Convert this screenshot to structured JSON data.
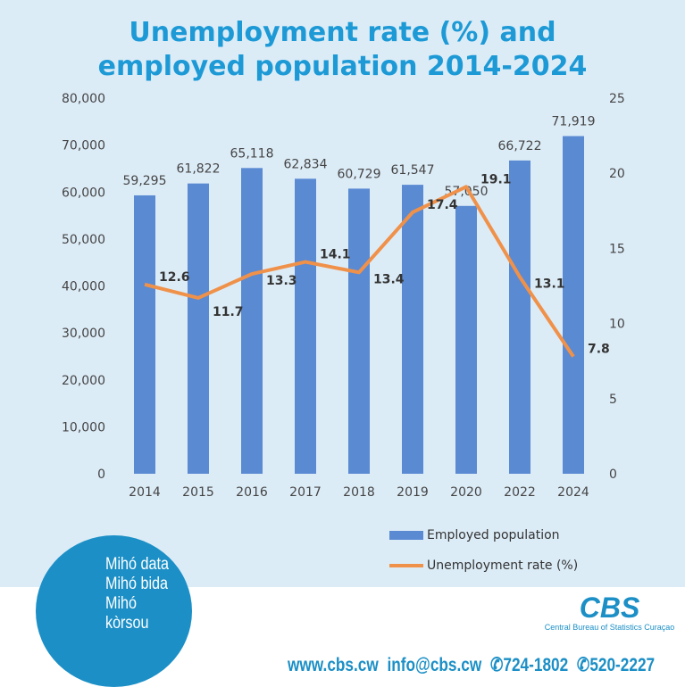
{
  "title_line1": "Unemployment rate (%) and",
  "title_line2": "employed population 2014-2024",
  "chart_data": {
    "type": "bar+line",
    "categories": [
      "2014",
      "2015",
      "2016",
      "2017",
      "2018",
      "2019",
      "2020",
      "2022",
      "2024"
    ],
    "series": [
      {
        "name": "Employed population",
        "type": "bar",
        "axis": "left",
        "values": [
          59295,
          61822,
          65118,
          62834,
          60729,
          61547,
          57050,
          66722,
          71919
        ],
        "labels": [
          "59,295",
          "61,822",
          "65,118",
          "62,834",
          "60,729",
          "61,547",
          "57,050",
          "66,722",
          "71,919"
        ]
      },
      {
        "name": "Unemployment rate (%)",
        "type": "line",
        "axis": "right",
        "values": [
          12.6,
          11.7,
          13.3,
          14.1,
          13.4,
          17.4,
          19.1,
          13.1,
          7.8
        ],
        "labels": [
          "12.6",
          "11.7",
          "13.3",
          "14.1",
          "13.4",
          "17.4",
          "19.1",
          "13.1",
          "7.8"
        ]
      }
    ],
    "left_axis": {
      "ylim": [
        0,
        80000
      ],
      "ticks": [
        "0",
        "10,000",
        "20,000",
        "30,000",
        "40,000",
        "50,000",
        "60,000",
        "70,000",
        "80,000"
      ]
    },
    "right_axis": {
      "ylim": [
        0,
        25
      ],
      "ticks": [
        "0",
        "5",
        "10",
        "15",
        "20",
        "25"
      ]
    },
    "legend": "bottom-right",
    "colors": {
      "bar": "#5a8ad2",
      "line": "#f0914a"
    }
  },
  "logo": {
    "lines": [
      "Mihó data",
      "Mihó bida",
      "Mihó kòrsou"
    ]
  },
  "cbs": {
    "name": "CBS",
    "subtitle": "Central Bureau of Statistics Curaçao"
  },
  "contact": {
    "web": "www.cbs.cw",
    "email": "info@cbs.cw",
    "phone": "724-1802",
    "whatsapp": "520-2227"
  }
}
